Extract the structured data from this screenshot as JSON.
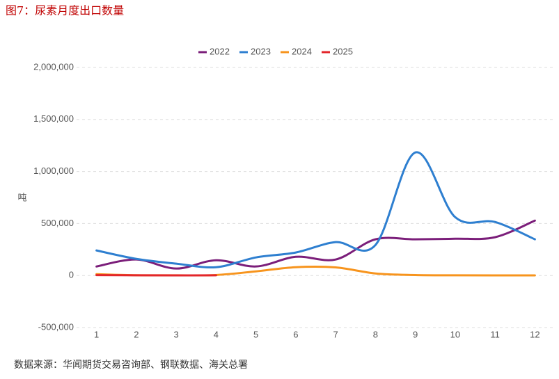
{
  "chart_data": {
    "type": "line",
    "title": "图7：尿素月度出口数量",
    "y_label": "吨",
    "source": "数据来源：华闻期货交易咨询部、钢联数据、海关总署",
    "categories": [
      "1",
      "2",
      "3",
      "4",
      "5",
      "6",
      "7",
      "8",
      "9",
      "10",
      "11",
      "12"
    ],
    "series": [
      {
        "name": "2022",
        "color": "#7b1e7a",
        "values": [
          87000,
          154000,
          67000,
          147000,
          87000,
          180000,
          154000,
          348000,
          348000,
          354000,
          368000,
          528000
        ]
      },
      {
        "name": "2023",
        "color": "#2e7fd0",
        "values": [
          241000,
          160000,
          114000,
          80000,
          174000,
          221000,
          321000,
          294000,
          1183000,
          561000,
          515000,
          348000
        ]
      },
      {
        "name": "2024",
        "color": "#f7941d",
        "values": [
          13000,
          3000,
          2000,
          5000,
          40000,
          80000,
          78000,
          20000,
          5000,
          2000,
          1000,
          1000
        ]
      },
      {
        "name": "2025",
        "color": "#e3262b",
        "values": [
          4000,
          2000,
          1000,
          2000,
          null,
          null,
          null,
          null,
          null,
          null,
          null,
          null
        ]
      }
    ],
    "ylim": [
      -500000,
      2000000
    ],
    "yticks": [
      {
        "value": -500000,
        "label": "-500,000"
      },
      0,
      {
        "value": 500000,
        "label": "500,000"
      },
      {
        "value": 1000000,
        "label": "1,000,000"
      },
      {
        "value": 1500000,
        "label": "1,500,000"
      },
      {
        "value": 2000000,
        "label": "2,000,000"
      }
    ],
    "grid": true,
    "legend": "top"
  }
}
